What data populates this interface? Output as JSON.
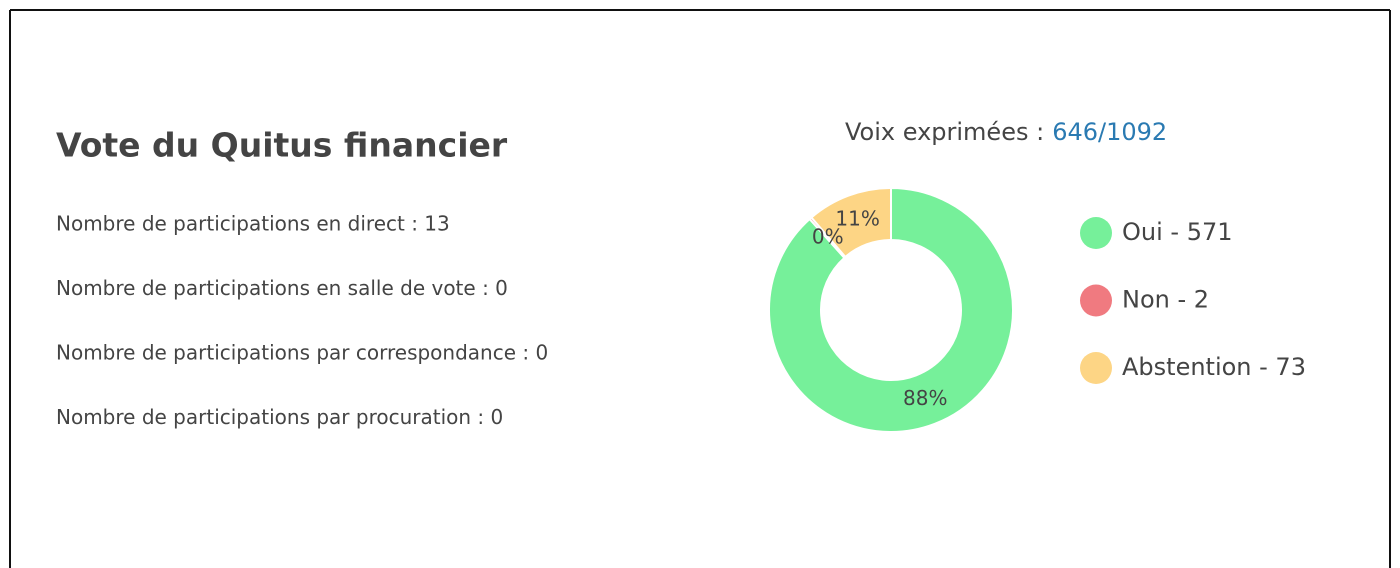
{
  "title": "Vote du Quitus financier",
  "stats": [
    "Nombre de participations en direct : 13",
    "Nombre de participations en salle de vote : 0",
    "Nombre de participations par correspondance : 0",
    "Nombre de participations par procuration : 0"
  ],
  "chart_data": {
    "type": "pie",
    "donut": true,
    "subtitle_label": "Voix exprimées :",
    "subtitle_value": "646/1092",
    "categories": [
      "Oui - 571",
      "Non - 2",
      "Abstention - 73"
    ],
    "values": [
      571,
      2,
      73
    ],
    "value_labels": [
      "88%",
      "0%",
      "11%"
    ],
    "colors": [
      "#76f09a",
      "#f07a80",
      "#fdd585"
    ]
  }
}
